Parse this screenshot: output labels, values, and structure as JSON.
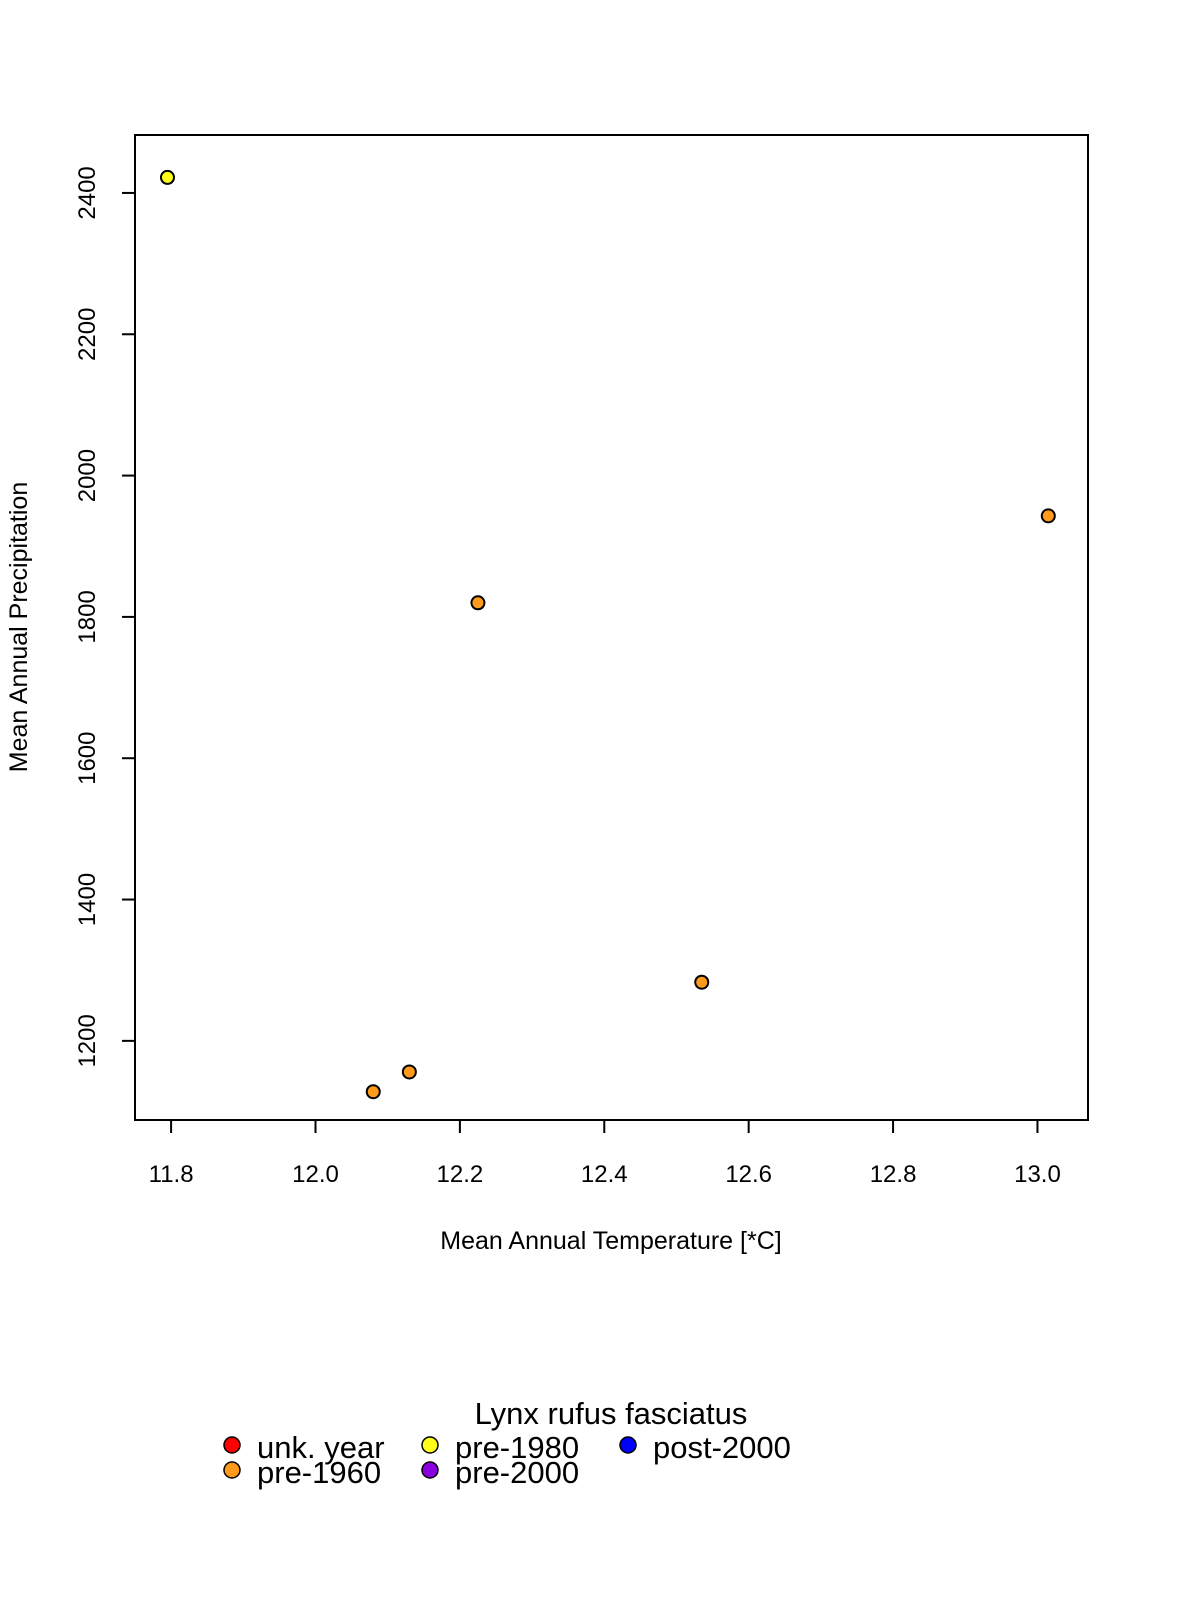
{
  "chart_data": {
    "type": "scatter",
    "title": "",
    "xlabel": "Mean Annual Temperature [*C]",
    "ylabel": "Mean Annual Precipitation",
    "xlim": [
      11.75,
      13.07
    ],
    "ylim": [
      1088,
      2482
    ],
    "x_ticks": [
      11.8,
      12.0,
      12.2,
      12.4,
      12.6,
      12.8,
      13.0
    ],
    "x_tick_labels": [
      "11.8",
      "12.0",
      "12.2",
      "12.4",
      "12.6",
      "12.8",
      "13.0"
    ],
    "y_ticks": [
      1200,
      1400,
      1600,
      1800,
      2000,
      2200,
      2400
    ],
    "y_tick_labels": [
      "1200",
      "1400",
      "1600",
      "1800",
      "2000",
      "2200",
      "2400"
    ],
    "grid": false,
    "legend": {
      "title": "Lynx rufus fasciatus",
      "placement": "bottom",
      "entries": [
        {
          "label": "unk. year",
          "color": "#ff0000"
        },
        {
          "label": "pre-1960",
          "color": "#ff9a1a"
        },
        {
          "label": "pre-1980",
          "color": "#ffff1a"
        },
        {
          "label": "pre-2000",
          "color": "#8a00e0"
        },
        {
          "label": "post-2000",
          "color": "#0000ff"
        }
      ]
    },
    "series": [
      {
        "name": "pre-1960",
        "color": "#ff9a1a",
        "points": [
          [
            12.08,
            1128
          ],
          [
            12.13,
            1156
          ],
          [
            12.225,
            1820
          ],
          [
            12.535,
            1283
          ],
          [
            13.015,
            1943
          ]
        ]
      },
      {
        "name": "pre-1980",
        "color": "#ffff1a",
        "points": [
          [
            11.795,
            2422
          ]
        ]
      }
    ]
  }
}
